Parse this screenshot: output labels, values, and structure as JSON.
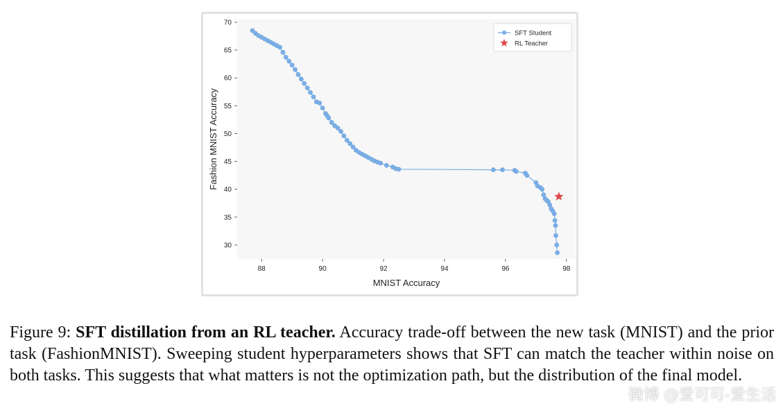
{
  "chart_data": {
    "type": "line",
    "xlabel": "MNIST Accuracy",
    "ylabel": "Fashion MNIST Accuracy",
    "xlim": [
      87.2,
      98.3
    ],
    "ylim": [
      27.5,
      70.5
    ],
    "xticks": [
      "88",
      "90",
      "92",
      "94",
      "96",
      "98"
    ],
    "yticks": [
      "30",
      "35",
      "40",
      "45",
      "50",
      "55",
      "60",
      "65",
      "70"
    ],
    "grid": false,
    "legend_position": "top-right",
    "series": [
      {
        "name": "SFT Student",
        "color": "#7aaee6",
        "marker": "circle",
        "x": [
          87.7,
          87.8,
          87.9,
          88.0,
          88.1,
          88.2,
          88.3,
          88.4,
          88.5,
          88.6,
          88.7,
          88.8,
          88.9,
          89.0,
          89.1,
          89.2,
          89.3,
          89.4,
          89.5,
          89.6,
          89.7,
          89.8,
          89.9,
          90.0,
          90.1,
          90.15,
          90.2,
          90.3,
          90.4,
          90.5,
          90.6,
          90.7,
          90.8,
          90.9,
          91.0,
          91.1,
          91.2,
          91.3,
          91.4,
          91.5,
          91.6,
          91.7,
          91.8,
          91.9,
          92.1,
          92.3,
          92.4,
          92.5,
          95.6,
          95.9,
          96.3,
          96.35,
          96.65,
          96.7,
          97.0,
          97.05,
          97.15,
          97.2,
          97.25,
          97.3,
          97.35,
          97.4,
          97.45,
          97.5,
          97.55,
          97.6,
          97.62,
          97.64,
          97.65,
          97.68,
          97.7
        ],
        "y": [
          68.5,
          68.0,
          67.6,
          67.3,
          67.0,
          66.7,
          66.4,
          66.1,
          65.8,
          65.5,
          64.6,
          63.7,
          63.0,
          62.3,
          61.5,
          60.6,
          59.8,
          59.0,
          58.2,
          57.4,
          56.6,
          55.7,
          55.5,
          54.6,
          53.6,
          53.2,
          52.8,
          52.0,
          51.4,
          51.0,
          50.4,
          49.6,
          48.8,
          48.2,
          47.6,
          47.0,
          46.6,
          46.3,
          46.0,
          45.7,
          45.4,
          45.1,
          44.9,
          44.7,
          44.3,
          44.0,
          43.7,
          43.6,
          43.5,
          43.5,
          43.4,
          43.2,
          42.9,
          42.5,
          41.2,
          40.6,
          40.3,
          40.0,
          39.0,
          38.3,
          38.0,
          37.8,
          37.2,
          36.5,
          36.1,
          35.6,
          34.4,
          33.5,
          31.7,
          30.0,
          28.6
        ]
      },
      {
        "name": "RL Teacher",
        "color": "#e0474c",
        "marker": "star",
        "x": [
          97.75
        ],
        "y": [
          38.7
        ]
      }
    ]
  },
  "caption": {
    "label": "Figure 9:",
    "bold": "SFT distillation from an RL teacher.",
    "text": "Accuracy trade-off between the new task (MNIST) and the prior task (FashionMNIST). Sweeping student hyperparameters shows that SFT can match the teacher within noise on both tasks. This suggests that what matters is not the optimization path, but the distribution of the final model."
  },
  "watermark": "微博 @爱可可-爱生活"
}
